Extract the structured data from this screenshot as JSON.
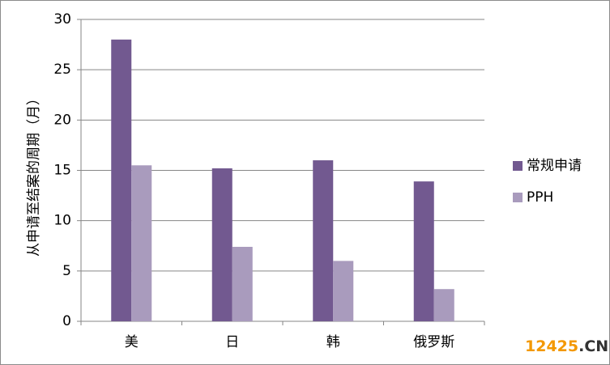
{
  "chart_data": {
    "type": "bar",
    "y_label": "从申请至结案的周期（月）",
    "categories": [
      "美",
      "日",
      "韩",
      "俄罗斯"
    ],
    "series": [
      {
        "name": "常规申请",
        "color": "#725990",
        "values": [
          28,
          15.2,
          16,
          13.9
        ]
      },
      {
        "name": "PPH",
        "color": "#a99bbd",
        "values": [
          15.5,
          7.4,
          6,
          3.2
        ]
      }
    ],
    "ylim": [
      0,
      30
    ],
    "yticks": [
      0,
      5,
      10,
      15,
      20,
      25,
      30
    ],
    "grid": true,
    "legend": "right",
    "watermark": [
      "12425",
      ".CN"
    ]
  }
}
